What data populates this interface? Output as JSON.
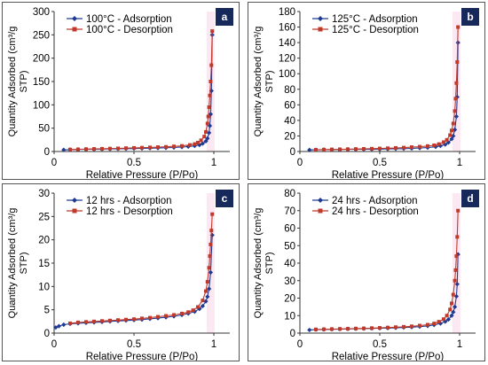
{
  "colors": {
    "adsorption": "#1f3a93",
    "desorption": "#c0392b",
    "badge": "#16295a",
    "frame": "#555555"
  },
  "panels": [
    {
      "badge": "a"
    },
    {
      "badge": "b"
    },
    {
      "badge": "c"
    },
    {
      "badge": "d"
    }
  ],
  "chart_data": [
    {
      "type": "line",
      "xlabel": "Relative Pressure (P/Po)",
      "ylabel_line1": "Quantity Adsorbed (cm³/g",
      "ylabel_line2": "STP)",
      "xlim": [
        0,
        1.1
      ],
      "ylim": [
        0,
        300
      ],
      "xticks": [
        0,
        0.5,
        1
      ],
      "xtick_labels": [
        "0",
        "0.5",
        "1"
      ],
      "yticks": [
        0,
        50,
        100,
        150,
        200,
        250,
        300
      ],
      "legend_position": "top-left",
      "series": [
        {
          "name": "100°C - Adsorption",
          "color": "#1f3a93",
          "marker": "diamond",
          "x": [
            0.06,
            0.1,
            0.15,
            0.2,
            0.25,
            0.3,
            0.35,
            0.4,
            0.45,
            0.5,
            0.55,
            0.6,
            0.65,
            0.7,
            0.75,
            0.8,
            0.84,
            0.88,
            0.91,
            0.93,
            0.95,
            0.96,
            0.97,
            0.975,
            0.98,
            0.985,
            0.99
          ],
          "y": [
            3.5,
            4,
            4.4,
            4.7,
            5,
            5.2,
            5.5,
            5.8,
            6,
            6.3,
            6.6,
            7,
            7.4,
            7.9,
            8.5,
            9.4,
            10.5,
            12,
            14,
            17,
            22,
            28,
            40,
            55,
            80,
            130,
            250
          ]
        },
        {
          "name": "100°C - Desorption",
          "color": "#c0392b",
          "marker": "square",
          "x": [
            0.99,
            0.985,
            0.98,
            0.975,
            0.97,
            0.965,
            0.96,
            0.95,
            0.94,
            0.92,
            0.9,
            0.88,
            0.85,
            0.8,
            0.75,
            0.7,
            0.65,
            0.6,
            0.55,
            0.5,
            0.45,
            0.4,
            0.35,
            0.3,
            0.25,
            0.2,
            0.15,
            0.1
          ],
          "y": [
            258,
            185,
            150,
            120,
            95,
            75,
            60,
            42,
            32,
            24,
            19,
            16,
            14,
            12,
            11,
            10,
            9.4,
            8.8,
            8.2,
            7.7,
            7.2,
            6.7,
            6.3,
            5.9,
            5.5,
            5.1,
            4.7,
            4.2
          ]
        }
      ]
    },
    {
      "type": "line",
      "xlabel": "Relative Pressure (P/Po)",
      "ylabel_line1": "Quantity Adsorbed (cm³/g",
      "ylabel_line2": "STP)",
      "xlim": [
        0,
        1.1
      ],
      "ylim": [
        0,
        180
      ],
      "xticks": [
        0,
        0.5,
        1
      ],
      "xtick_labels": [
        "0",
        "0.5",
        "1"
      ],
      "yticks": [
        0,
        20,
        40,
        60,
        80,
        100,
        120,
        140,
        160,
        180
      ],
      "legend_position": "top-left",
      "series": [
        {
          "name": "125°C - Adsorption",
          "color": "#1f3a93",
          "marker": "diamond",
          "x": [
            0.06,
            0.1,
            0.15,
            0.2,
            0.25,
            0.3,
            0.35,
            0.4,
            0.45,
            0.5,
            0.55,
            0.6,
            0.65,
            0.7,
            0.75,
            0.8,
            0.85,
            0.88,
            0.91,
            0.93,
            0.95,
            0.96,
            0.97,
            0.98,
            0.985,
            0.99
          ],
          "y": [
            2,
            2.2,
            2.4,
            2.5,
            2.6,
            2.7,
            2.8,
            2.9,
            3,
            3.1,
            3.3,
            3.5,
            3.7,
            4,
            4.4,
            5,
            6,
            7.2,
            9,
            11.5,
            16,
            20,
            28,
            45,
            70,
            140
          ]
        },
        {
          "name": "125°C - Desorption",
          "color": "#c0392b",
          "marker": "square",
          "x": [
            0.99,
            0.985,
            0.98,
            0.975,
            0.97,
            0.96,
            0.95,
            0.94,
            0.92,
            0.9,
            0.87,
            0.84,
            0.8,
            0.75,
            0.7,
            0.65,
            0.6,
            0.55,
            0.5,
            0.45,
            0.4,
            0.35,
            0.3,
            0.25,
            0.2,
            0.15,
            0.1
          ],
          "y": [
            160,
            115,
            88,
            68,
            52,
            36,
            27,
            21,
            15,
            12,
            9.5,
            8,
            7,
            6.2,
            5.6,
            5,
            4.6,
            4.2,
            3.9,
            3.6,
            3.4,
            3.2,
            3,
            2.8,
            2.6,
            2.4,
            2.2
          ]
        }
      ]
    },
    {
      "type": "line",
      "xlabel": "Relative Pressure (P/Po)",
      "ylabel_line1": "Quantity Adsorbed (cm³/g",
      "ylabel_line2": "STP)",
      "xlim": [
        0,
        1.1
      ],
      "ylim": [
        0,
        30
      ],
      "xticks": [
        0,
        0.5,
        1
      ],
      "xtick_labels": [
        "0",
        "0.5",
        "1"
      ],
      "yticks": [
        0,
        5,
        10,
        15,
        20,
        25,
        30
      ],
      "legend_position": "top-left",
      "series": [
        {
          "name": "12 hrs - Adsorption",
          "color": "#1f3a93",
          "marker": "diamond",
          "x": [
            0.01,
            0.03,
            0.06,
            0.1,
            0.15,
            0.2,
            0.25,
            0.3,
            0.35,
            0.4,
            0.45,
            0.5,
            0.55,
            0.6,
            0.65,
            0.7,
            0.75,
            0.8,
            0.84,
            0.88,
            0.91,
            0.93,
            0.95,
            0.96,
            0.97,
            0.98,
            0.99
          ],
          "y": [
            1.2,
            1.5,
            1.8,
            2,
            2.1,
            2.2,
            2.3,
            2.4,
            2.5,
            2.6,
            2.7,
            2.8,
            2.9,
            3.05,
            3.2,
            3.4,
            3.6,
            3.9,
            4.2,
            4.6,
            5.2,
            5.8,
            6.8,
            7.8,
            9.5,
            13,
            21
          ]
        },
        {
          "name": "12 hrs - Desorption",
          "color": "#c0392b",
          "marker": "square",
          "x": [
            0.99,
            0.985,
            0.98,
            0.975,
            0.97,
            0.96,
            0.95,
            0.93,
            0.9,
            0.87,
            0.84,
            0.8,
            0.75,
            0.7,
            0.65,
            0.6,
            0.55,
            0.5,
            0.45,
            0.4,
            0.35,
            0.3,
            0.25,
            0.2,
            0.15,
            0.1
          ],
          "y": [
            25.5,
            22,
            19,
            16.5,
            14,
            11,
            9,
            7,
            5.6,
            4.9,
            4.5,
            4.2,
            3.9,
            3.7,
            3.5,
            3.3,
            3.15,
            3,
            2.9,
            2.8,
            2.7,
            2.6,
            2.5,
            2.4,
            2.3,
            2.1
          ]
        }
      ]
    },
    {
      "type": "line",
      "xlabel": "Relative Pressure (P/Po)",
      "ylabel_line1": "Quantity Adsorbed (cm³/g",
      "ylabel_line2": "STP)",
      "xlim": [
        0,
        1.1
      ],
      "ylim": [
        0,
        80
      ],
      "xticks": [
        0,
        0.5,
        1
      ],
      "xtick_labels": [
        "0",
        "0.5",
        "1"
      ],
      "yticks": [
        0,
        10,
        20,
        30,
        40,
        50,
        60,
        70,
        80
      ],
      "legend_position": "top-left",
      "series": [
        {
          "name": "24 hrs - Adsorption",
          "color": "#1f3a93",
          "marker": "diamond",
          "x": [
            0.06,
            0.1,
            0.15,
            0.2,
            0.25,
            0.3,
            0.35,
            0.4,
            0.45,
            0.5,
            0.55,
            0.6,
            0.65,
            0.7,
            0.75,
            0.8,
            0.84,
            0.88,
            0.91,
            0.93,
            0.95,
            0.96,
            0.97,
            0.98,
            0.985,
            0.99
          ],
          "y": [
            1.8,
            2,
            2.1,
            2.2,
            2.3,
            2.4,
            2.5,
            2.6,
            2.7,
            2.8,
            2.9,
            3,
            3.2,
            3.4,
            3.7,
            4.1,
            4.7,
            5.5,
            6.6,
            7.8,
            10,
            12,
            15,
            21,
            28,
            45
          ]
        },
        {
          "name": "24 hrs - Desorption",
          "color": "#c0392b",
          "marker": "square",
          "x": [
            0.99,
            0.985,
            0.98,
            0.975,
            0.97,
            0.96,
            0.95,
            0.94,
            0.92,
            0.9,
            0.87,
            0.84,
            0.8,
            0.75,
            0.7,
            0.65,
            0.6,
            0.55,
            0.5,
            0.45,
            0.4,
            0.35,
            0.3,
            0.25,
            0.2,
            0.15,
            0.1
          ],
          "y": [
            70,
            55,
            44,
            36,
            30,
            22,
            17,
            13.5,
            10,
            8,
            6.5,
            5.5,
            4.8,
            4.3,
            3.9,
            3.6,
            3.4,
            3.2,
            3,
            2.85,
            2.7,
            2.6,
            2.5,
            2.4,
            2.3,
            2.2,
            2.1
          ]
        }
      ]
    }
  ]
}
